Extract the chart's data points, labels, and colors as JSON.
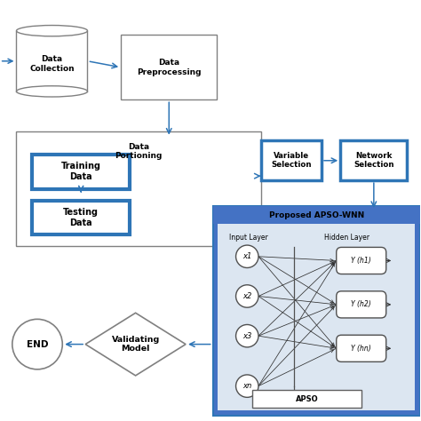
{
  "bg_color": "#ffffff",
  "light_blue_bg": "#dce6f1",
  "mid_blue_bg": "#4472c4",
  "blue_border": "#2e75b6",
  "arrow_color": "#2e75b6",
  "gray_border": "#808080",
  "line_color": "#404040",
  "title_apso": "Proposed APSO-WNN",
  "input_labels": [
    "x1",
    "x2",
    "x3",
    "xn"
  ],
  "hidden_labels": [
    "Y (h1)",
    "Y (h2)",
    "Y (hn)"
  ],
  "apso_label": "APSO",
  "input_layer_label": "Input Layer",
  "hidden_layer_label": "Hidden Layer",
  "node_color": "#f5f5f5",
  "node_border": "#505050",
  "figsize": [
    4.74,
    4.74
  ],
  "dpi": 100,
  "xlim": [
    0,
    10
  ],
  "ylim": [
    0,
    10
  ]
}
